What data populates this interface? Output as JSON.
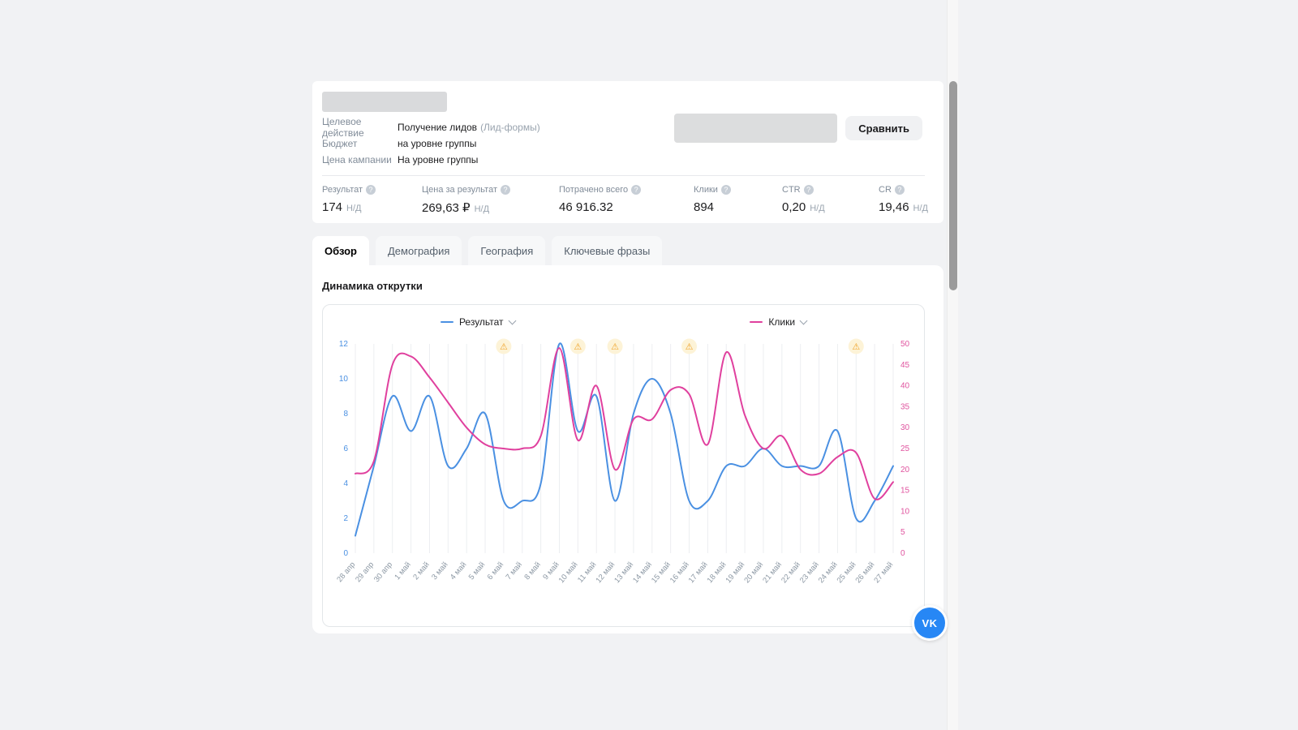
{
  "campaign": {
    "rows": [
      {
        "label": "Целевое действие",
        "value": "Получение лидов",
        "suffix": "(Лид-формы)"
      },
      {
        "label": "Бюджет",
        "value": "на уровне группы",
        "suffix": ""
      },
      {
        "label": "Цена кампании",
        "value": "На уровне группы",
        "suffix": ""
      }
    ],
    "compare_button": "Сравнить"
  },
  "help_icon": "?",
  "stats": [
    {
      "label": "Результат",
      "value": "174",
      "unit": "Н/Д"
    },
    {
      "label": "Цена за результат",
      "value": "269,63 ₽",
      "unit": "Н/Д"
    },
    {
      "label": "Потрачено всего",
      "value": "46 916.32",
      "unit": ""
    },
    {
      "label": "Клики",
      "value": "894",
      "unit": ""
    },
    {
      "label": "CTR",
      "value": "0,20",
      "unit": "Н/Д"
    },
    {
      "label": "CR",
      "value": "19,46",
      "unit": "Н/Д"
    }
  ],
  "tabs": {
    "items": [
      {
        "label": "Обзор"
      },
      {
        "label": "Демография"
      },
      {
        "label": "География"
      },
      {
        "label": "Ключевые фразы"
      }
    ]
  },
  "section_title": "Динамика открутки",
  "chart_data": {
    "type": "line",
    "title": "Динамика открутки",
    "categories": [
      "28 апр",
      "29 апр",
      "30 апр",
      "1 май",
      "2 май",
      "3 май",
      "4 май",
      "5 май",
      "6 май",
      "7 май",
      "8 май",
      "9 май",
      "10 май",
      "11 май",
      "12 май",
      "13 май",
      "14 май",
      "15 май",
      "16 май",
      "17 май",
      "18 май",
      "19 май",
      "20 май",
      "21 май",
      "22 май",
      "23 май",
      "24 май",
      "25 май",
      "26 май",
      "27 май"
    ],
    "series": [
      {
        "name": "Результат",
        "axis": "left",
        "color": "#4a90e2",
        "values": [
          1,
          5,
          9,
          7,
          9,
          5,
          6,
          8,
          3,
          3,
          4,
          12,
          7,
          9,
          3,
          8,
          10,
          8,
          3,
          3,
          5,
          5,
          6,
          5,
          5,
          5,
          7,
          2,
          3,
          5
        ]
      },
      {
        "name": "Клики",
        "axis": "right",
        "color": "#e0409e",
        "values": [
          19,
          22,
          45,
          47,
          42,
          36,
          30,
          26,
          25,
          25,
          28,
          49,
          27,
          40,
          20,
          32,
          32,
          39,
          38,
          26,
          48,
          33,
          25,
          28,
          20,
          19,
          23,
          24,
          13,
          17
        ]
      }
    ],
    "left_axis": {
      "min": 0,
      "max": 12,
      "step": 2,
      "color": "#4a90e2"
    },
    "right_axis": {
      "min": 0,
      "max": 50,
      "step": 5,
      "color": "#e0549f"
    },
    "grid": "vertical",
    "legend_position": "top",
    "warnings": [
      "6 май",
      "10 май",
      "12 май",
      "16 май",
      "25 май"
    ],
    "warning_icon": "⚠"
  },
  "vk_label": "VK",
  "colors": {
    "vk_blue": "#2787f5",
    "warning_bg": "#fdf3d7",
    "warning_fg": "#efa32a"
  }
}
